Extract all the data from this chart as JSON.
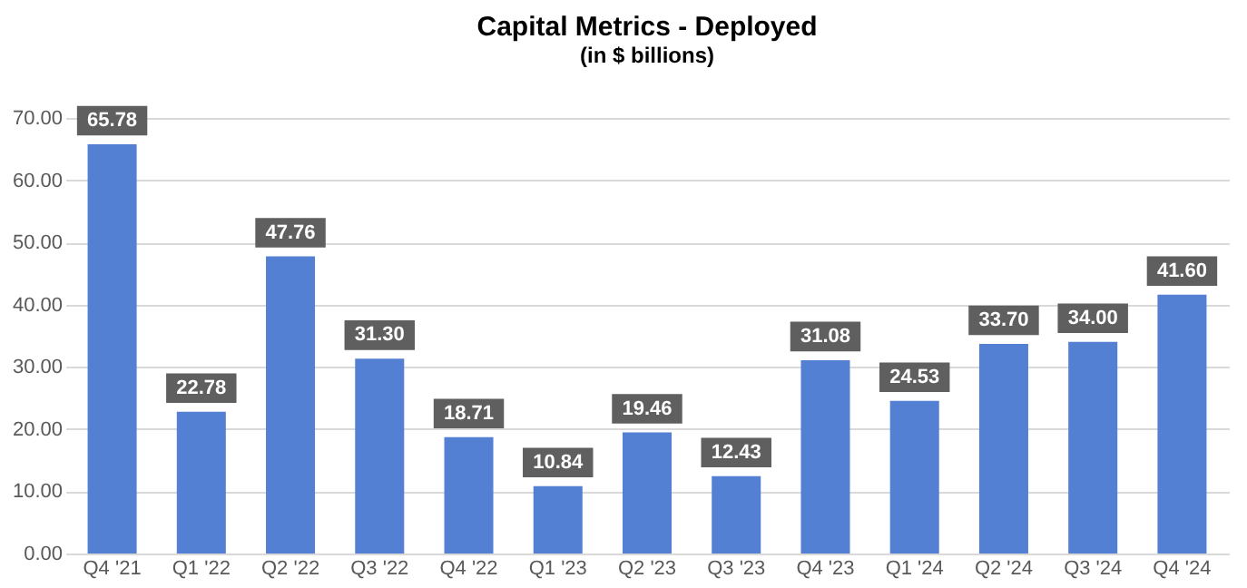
{
  "chart_data": {
    "type": "bar",
    "title": "Capital Metrics - Deployed",
    "subtitle": "(in $ billions)",
    "categories": [
      "Q4 '21",
      "Q1 '22",
      "Q2 '22",
      "Q3 '22",
      "Q4 '22",
      "Q1 '23",
      "Q2 '23",
      "Q3 '23",
      "Q4 '23",
      "Q1 '24",
      "Q2 '24",
      "Q3 '24",
      "Q4 '24"
    ],
    "values": [
      65.78,
      22.78,
      47.76,
      31.3,
      18.71,
      10.84,
      19.46,
      12.43,
      31.08,
      24.53,
      33.7,
      34.0,
      41.6
    ],
    "value_labels": [
      "65.78",
      "22.78",
      "47.76",
      "31.30",
      "18.71",
      "10.84",
      "19.46",
      "12.43",
      "31.08",
      "24.53",
      "33.70",
      "34.00",
      "41.60"
    ],
    "color": "#5480d4",
    "ylim": [
      0,
      70
    ],
    "yticks": [
      {
        "value": 0,
        "label": "0.00"
      },
      {
        "value": 10,
        "label": "10.00"
      },
      {
        "value": 20,
        "label": "20.00"
      },
      {
        "value": 30,
        "label": "30.00"
      },
      {
        "value": 40,
        "label": "40.00"
      },
      {
        "value": 50,
        "label": "50.00"
      },
      {
        "value": 60,
        "label": "60.00"
      },
      {
        "value": 70,
        "label": "70.00"
      }
    ],
    "grid": "y"
  }
}
